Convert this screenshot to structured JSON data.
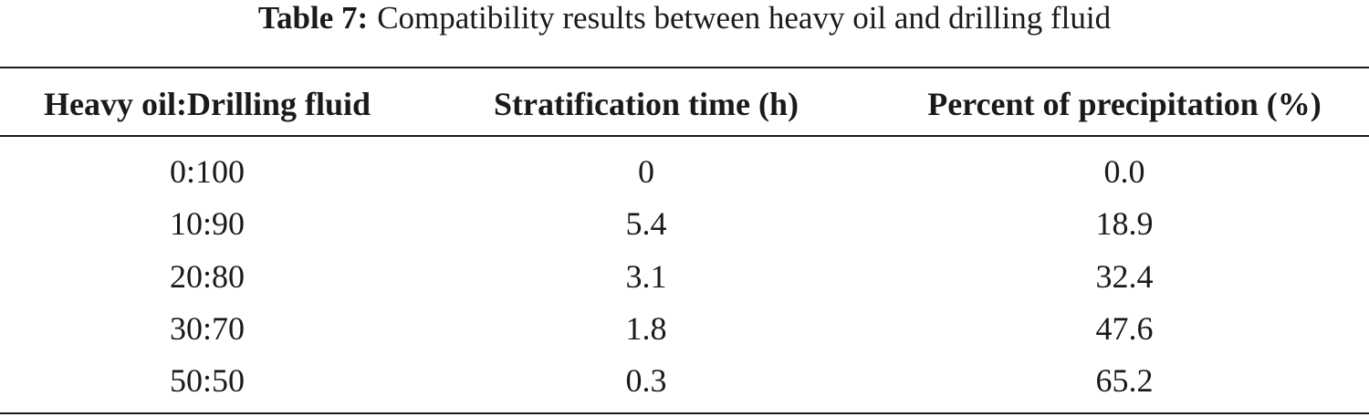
{
  "caption": {
    "label": "Table 7:",
    "text": "Compatibility results between heavy oil and drilling fluid"
  },
  "table": {
    "header": [
      "Heavy oil:Drilling fluid",
      "Stratification time (h)",
      "Percent of precipitation (%)"
    ],
    "rows": [
      [
        "0:100",
        "0",
        "0.0"
      ],
      [
        "10:90",
        "5.4",
        "18.9"
      ],
      [
        "20:80",
        "3.1",
        "32.4"
      ],
      [
        "30:70",
        "1.8",
        "47.6"
      ],
      [
        "50:50",
        "0.3",
        "65.2"
      ]
    ]
  }
}
